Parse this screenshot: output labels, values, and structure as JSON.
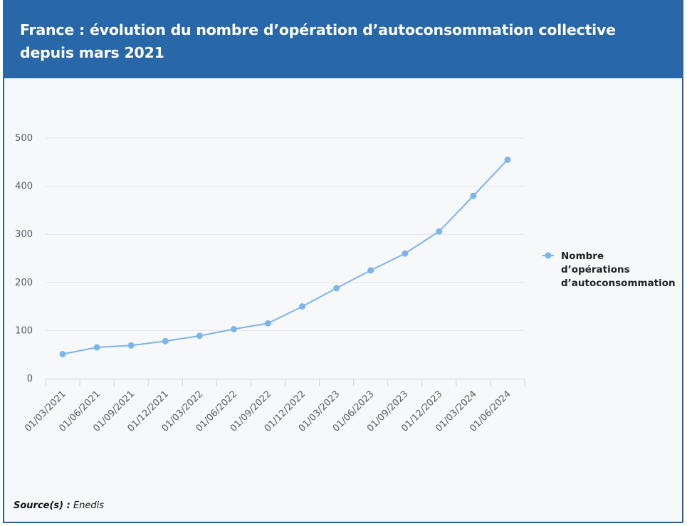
{
  "header": {
    "title": "France : évolution du nombre d’opération d’autoconsommation collective depuis mars 2021"
  },
  "source": {
    "label": "Source(s) :",
    "value": "Enedis"
  },
  "colors": {
    "header_bg": "#2968a8",
    "series": "#7cb5ec",
    "grid": "#e6e6e6"
  },
  "chart_data": {
    "type": "line",
    "title": "France : évolution du nombre d’opération d’autoconsommation collective depuis mars 2021",
    "xlabel": "",
    "ylabel": "",
    "ylim": [
      0,
      500
    ],
    "yticks": [
      "0",
      "100",
      "200",
      "300",
      "400",
      "500"
    ],
    "ytick_values": [
      0,
      100,
      200,
      300,
      400,
      500
    ],
    "categories": [
      "01/03/2021",
      "01/06/2021",
      "01/09/2021",
      "01/12/2021",
      "01/03/2022",
      "01/06/2022",
      "01/09/2022",
      "01/12/2022",
      "01/03/2023",
      "01/06/2023",
      "01/09/2023",
      "01/12/2023",
      "01/03/2024",
      "01/06/2024"
    ],
    "series": [
      {
        "name": "Nombre d’opérations d’autoconsommation",
        "name_lines": [
          "Nombre",
          "d’opérations",
          "d’autoconsommation"
        ],
        "values": [
          51,
          65,
          69,
          78,
          89,
          103,
          115,
          150,
          188,
          225,
          260,
          306,
          380,
          455
        ]
      }
    ],
    "legend": "right",
    "grid": true
  }
}
